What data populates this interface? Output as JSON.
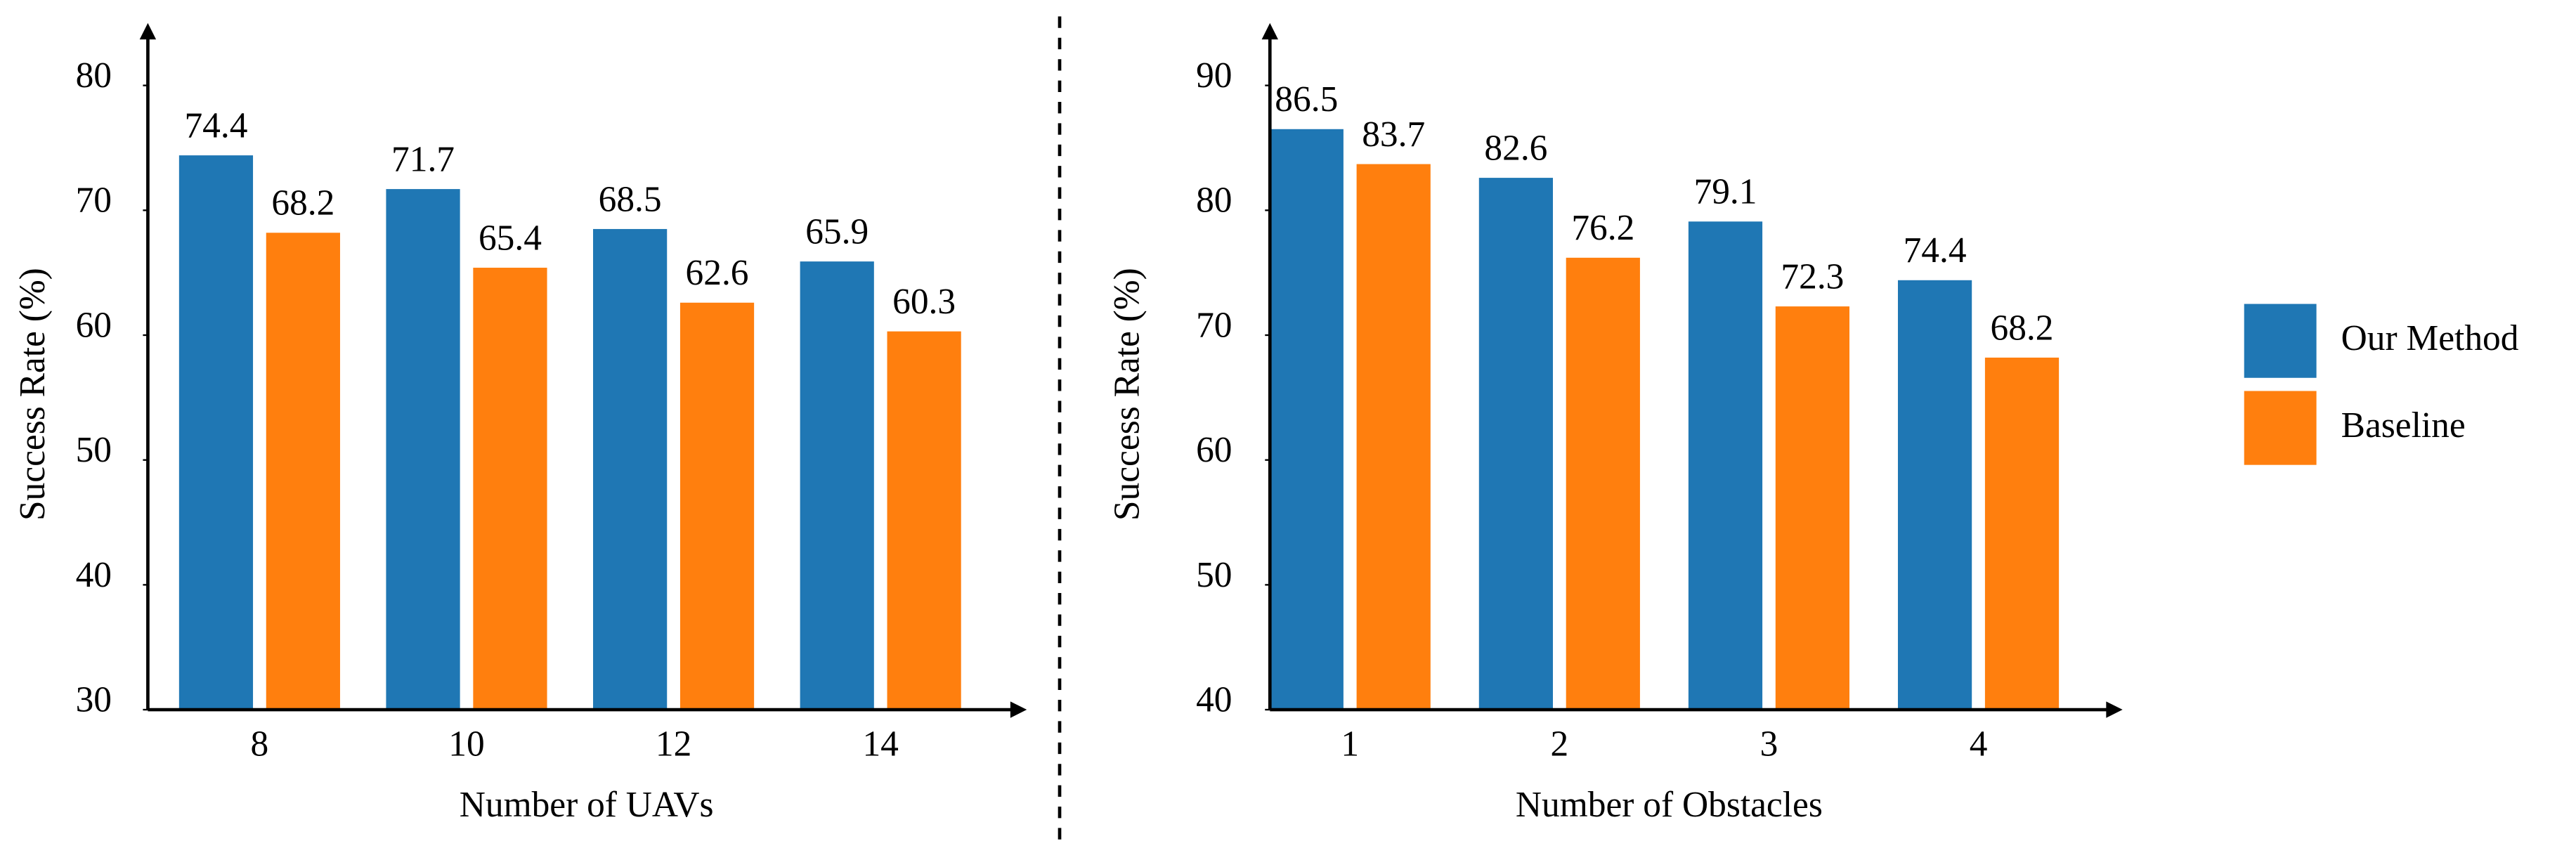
{
  "chart_data": [
    {
      "type": "bar",
      "xlabel": "Number of UAVs",
      "ylabel": "Success Rate (%)",
      "categories": [
        "8",
        "10",
        "12",
        "14"
      ],
      "series": [
        {
          "color": "#1f77b4",
          "values": [
            74.4,
            71.7,
            68.5,
            65.9
          ]
        },
        {
          "color": "#ff7f0e",
          "values": [
            68.2,
            65.4,
            62.6,
            60.3
          ]
        }
      ],
      "ylim": [
        30,
        85
      ],
      "yticks": [
        30,
        40,
        50,
        60,
        70,
        80
      ]
    },
    {
      "type": "bar",
      "xlabel": "Number of Obstacles",
      "ylabel": "Success Rate (%)",
      "categories": [
        "1",
        "2",
        "3",
        "4"
      ],
      "series": [
        {
          "name": "Our Method",
          "color": "#1f77b4",
          "values": [
            86.5,
            82.6,
            79.1,
            74.4
          ]
        },
        {
          "name": "Baseline",
          "color": "#ff7f0e",
          "values": [
            83.7,
            76.2,
            72.3,
            68.2
          ]
        }
      ],
      "ylim": [
        40,
        95
      ],
      "yticks": [
        40,
        50,
        60,
        70,
        80,
        90
      ]
    }
  ]
}
